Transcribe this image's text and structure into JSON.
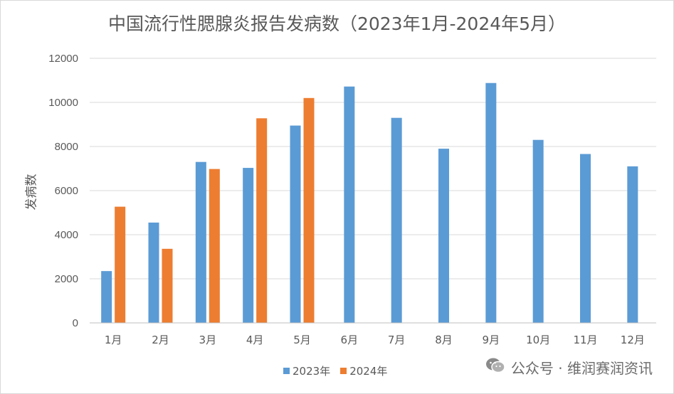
{
  "chart_data": {
    "type": "bar",
    "title": "中国流行性腮腺炎报告发病数（2023年1月-2024年5月）",
    "ylabel": "发病数",
    "xlabel": "",
    "ylim": [
      0,
      12000
    ],
    "yticks": [
      "0",
      "2000",
      "4000",
      "6000",
      "8000",
      "10000",
      "12000"
    ],
    "categories": [
      "1月",
      "2月",
      "3月",
      "4月",
      "5月",
      "6月",
      "7月",
      "8月",
      "9月",
      "10月",
      "11月",
      "12月"
    ],
    "series": [
      {
        "name": "2023年",
        "color": "#5b9bd5",
        "values": [
          2350,
          4550,
          7300,
          7030,
          8950,
          10720,
          9300,
          7900,
          10880,
          8300,
          7660,
          7100
        ]
      },
      {
        "name": "2024年",
        "color": "#ed7d31",
        "values": [
          5270,
          3360,
          6980,
          9280,
          10200,
          null,
          null,
          null,
          null,
          null,
          null,
          null
        ]
      }
    ],
    "grid": true,
    "legend_position": "bottom"
  },
  "watermark": {
    "text": "公众号 · 维润赛润资讯",
    "icon": "wechat-icon"
  }
}
